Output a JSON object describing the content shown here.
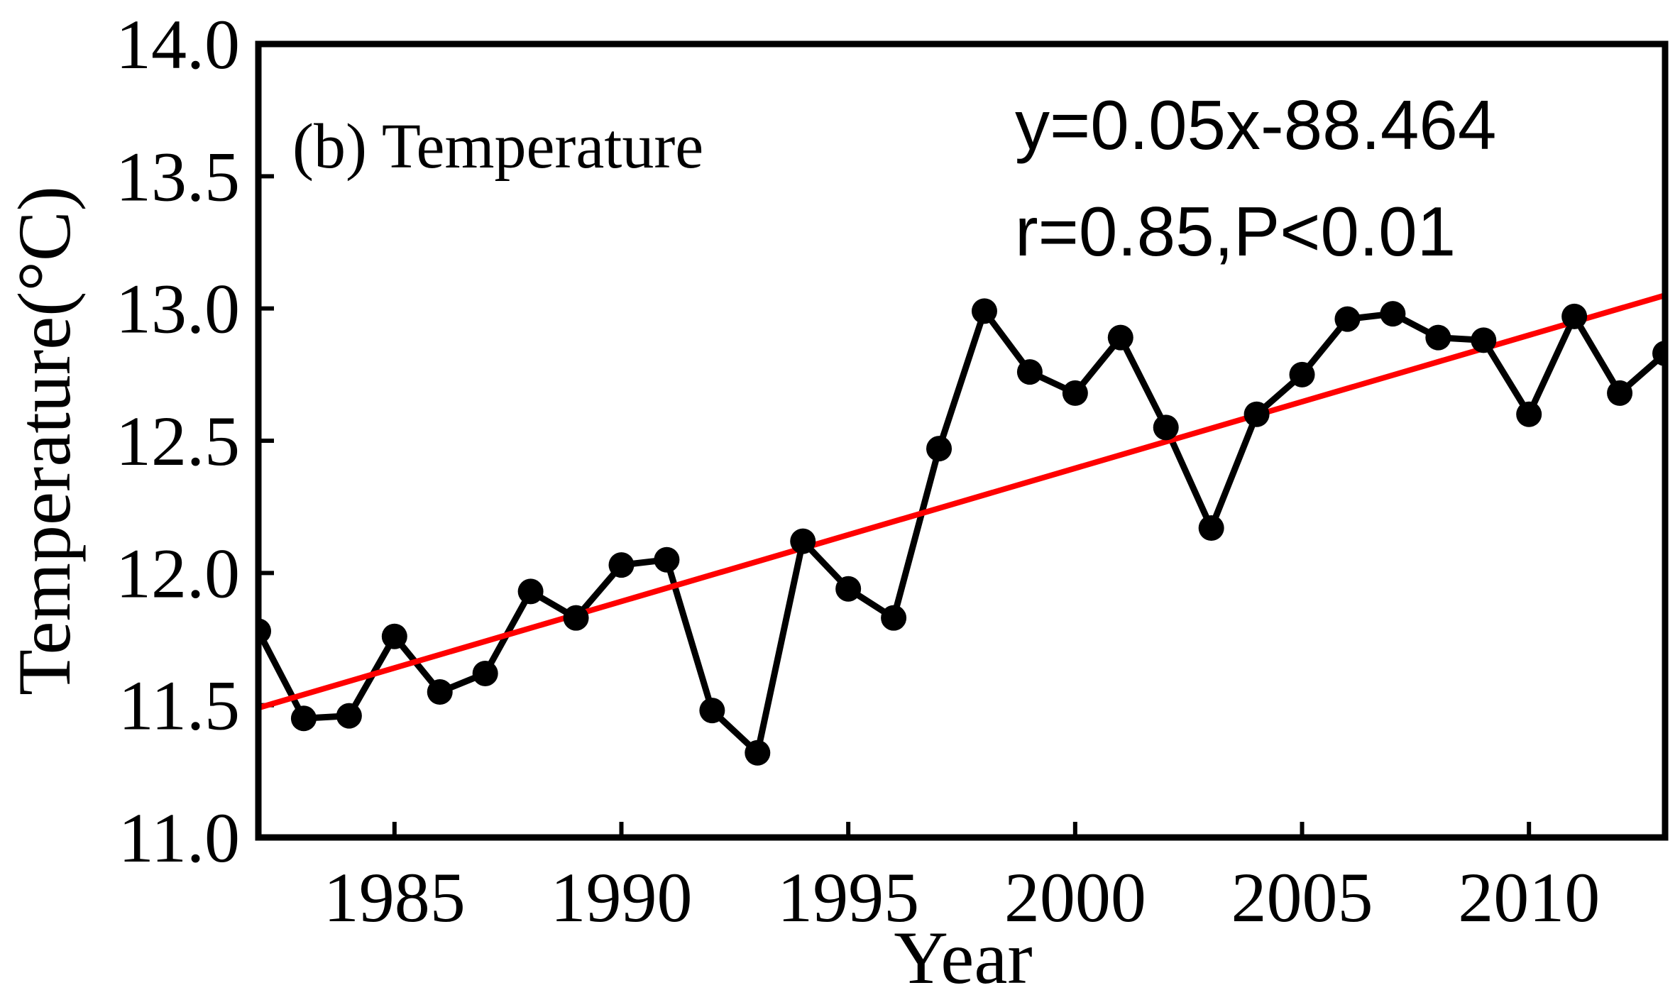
{
  "chart_data": {
    "type": "line",
    "panel_label": "(b) Temperature",
    "xlabel": "Year",
    "ylabel": "Temperature(°C)",
    "xlim": [
      1982,
      2013
    ],
    "ylim": [
      11.0,
      14.0
    ],
    "x_ticks": [
      1985,
      1990,
      1995,
      2000,
      2005,
      2010
    ],
    "y_ticks": [
      "11.0",
      "11.5",
      "12.0",
      "12.5",
      "13.0",
      "13.5",
      "14.0"
    ],
    "series": [
      {
        "name": "Temperature",
        "x": [
          1982,
          1983,
          1984,
          1985,
          1986,
          1987,
          1988,
          1989,
          1990,
          1991,
          1992,
          1993,
          1994,
          1995,
          1996,
          1997,
          1998,
          1999,
          2000,
          2001,
          2002,
          2003,
          2004,
          2005,
          2006,
          2007,
          2008,
          2009,
          2010,
          2011,
          2012,
          2013
        ],
        "values": [
          11.78,
          11.45,
          11.46,
          11.76,
          11.55,
          11.62,
          11.93,
          11.83,
          12.03,
          12.05,
          11.48,
          11.32,
          12.12,
          11.94,
          11.83,
          12.47,
          12.99,
          12.76,
          12.68,
          12.89,
          12.55,
          12.17,
          12.6,
          12.75,
          12.96,
          12.98,
          12.89,
          12.88,
          12.6,
          12.97,
          12.68,
          12.83
        ],
        "color": "#000000"
      }
    ],
    "trendline": {
      "color": "#ff0000",
      "x": [
        1982,
        2013
      ],
      "values": [
        11.49,
        13.05
      ]
    },
    "annotation_lines": [
      "y=0.05x-88.464",
      "r=0.85,P<0.01"
    ]
  }
}
